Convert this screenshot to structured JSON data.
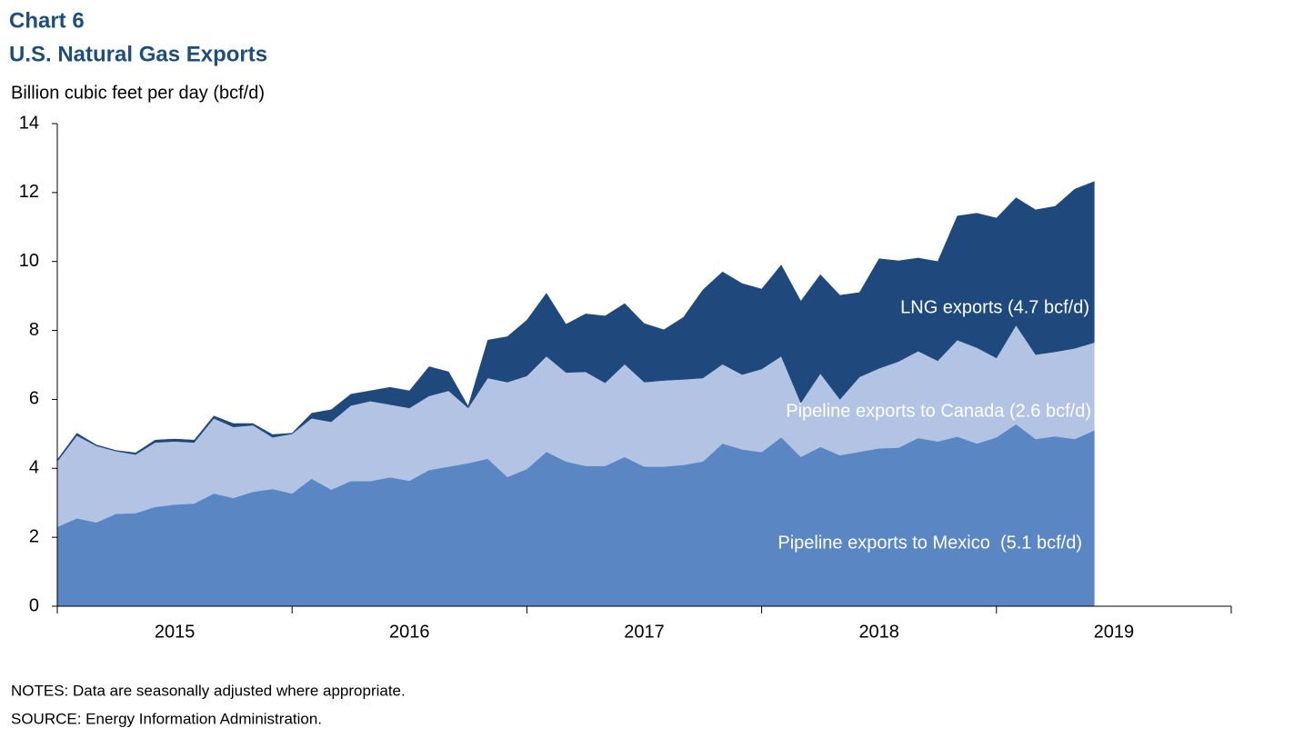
{
  "chart_data": {
    "type": "stacked_area",
    "title": "Chart 6",
    "subtitle": "U.S. Natural Gas Exports",
    "y_label": "Billion cubic feet per day (bcf/d)",
    "categories": [
      null,
      null,
      null,
      null,
      null,
      null,
      null,
      null,
      null,
      null,
      null,
      null,
      null,
      null,
      null,
      null,
      null,
      null,
      null,
      null,
      null,
      null,
      null,
      null,
      null,
      null,
      null,
      null,
      null,
      null,
      null,
      null,
      null,
      null,
      null,
      null,
      null,
      null,
      null,
      null,
      null,
      null,
      null,
      null,
      null,
      null,
      null,
      null,
      null,
      null,
      null,
      null,
      null,
      null
    ],
    "years": [
      "2015",
      "2016",
      "2017",
      "2018",
      "2019"
    ],
    "series": [
      {
        "name": "Pipeline exports to Mexico  (5.1 bcf/d)",
        "color": "#5b86c4",
        "label_color": "#ffffff",
        "values": [
          2.3,
          2.55,
          2.43,
          2.68,
          2.7,
          2.88,
          2.95,
          2.98,
          3.27,
          3.14,
          3.32,
          3.4,
          3.27,
          3.7,
          3.38,
          3.63,
          3.63,
          3.74,
          3.64,
          3.95,
          4.05,
          4.15,
          4.28,
          3.75,
          3.98,
          4.48,
          4.2,
          4.07,
          4.07,
          4.33,
          4.05,
          4.05,
          4.1,
          4.2,
          4.72,
          4.55,
          4.47,
          4.9,
          4.33,
          4.62,
          4.38,
          4.48,
          4.58,
          4.6,
          4.88,
          4.78,
          4.92,
          4.72,
          4.9,
          5.28,
          4.85,
          4.93,
          4.85,
          5.1
        ]
      },
      {
        "name": "Pipeline exports to Canada (2.6 bcf/d)",
        "color": "#b3c3e4",
        "label_color": "#ffffff",
        "values": [
          1.9,
          2.4,
          2.22,
          1.82,
          1.7,
          1.87,
          1.83,
          1.77,
          2.18,
          2.06,
          1.93,
          1.5,
          1.73,
          1.75,
          1.97,
          2.19,
          2.32,
          2.11,
          2.11,
          2.15,
          2.2,
          1.6,
          2.34,
          2.75,
          2.7,
          2.77,
          2.58,
          2.73,
          2.41,
          2.69,
          2.45,
          2.5,
          2.48,
          2.42,
          2.3,
          2.17,
          2.41,
          2.35,
          1.57,
          2.13,
          1.62,
          2.17,
          2.32,
          2.5,
          2.52,
          2.34,
          2.8,
          2.78,
          2.3,
          2.87,
          2.45,
          2.45,
          2.63,
          2.55
        ]
      },
      {
        "name": "LNG exports (4.7 bcf/d)",
        "color": "#1f497d",
        "label_color": "#ffffff",
        "values": [
          0.05,
          0.07,
          0.03,
          0.02,
          0.05,
          0.07,
          0.07,
          0.07,
          0.07,
          0.1,
          0.05,
          0.08,
          0.02,
          0.15,
          0.35,
          0.33,
          0.3,
          0.5,
          0.5,
          0.85,
          0.55,
          0.05,
          1.1,
          1.32,
          1.62,
          1.83,
          1.4,
          1.68,
          1.94,
          1.76,
          1.7,
          1.47,
          1.8,
          2.56,
          2.68,
          2.64,
          2.32,
          2.65,
          2.95,
          2.87,
          3.02,
          2.45,
          3.18,
          2.92,
          2.7,
          2.88,
          3.6,
          3.9,
          4.06,
          3.7,
          4.2,
          4.22,
          4.62,
          4.67
        ]
      }
    ],
    "ylim": [
      0,
      14
    ],
    "yticks": [
      0,
      2,
      4,
      6,
      8,
      10,
      12,
      14
    ],
    "notes": "NOTES: Data are seasonally adjusted where appropriate.",
    "source": "SOURCE: Energy Information Administration."
  }
}
